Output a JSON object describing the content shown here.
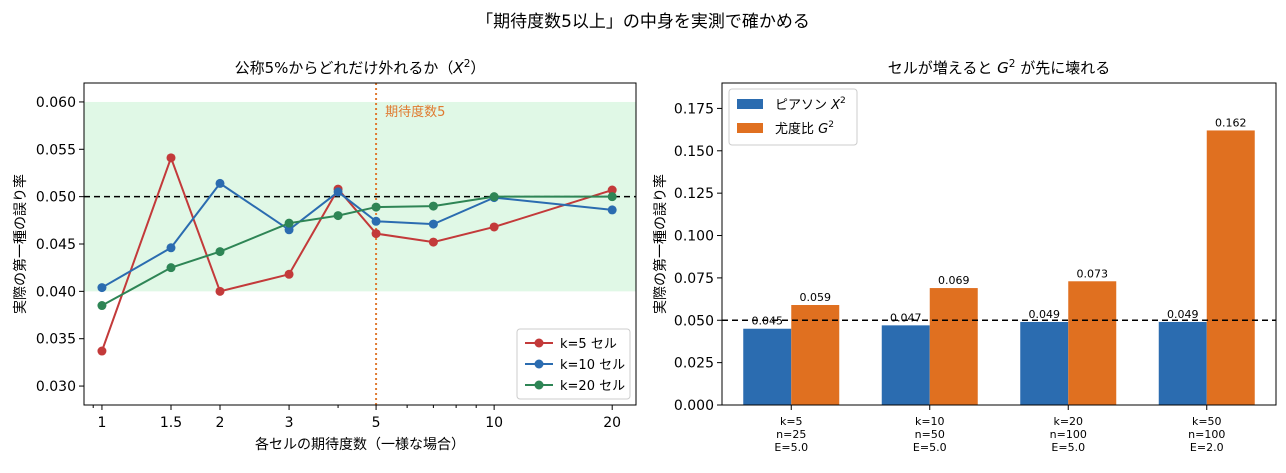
{
  "suptitle": "「期待度数5以上」の中身を実測で確かめる",
  "chart_data": [
    {
      "type": "line",
      "title": "公称5%からどれだけ外れるか（X²）",
      "xlabel": "各セルの期待度数（一様な場合）",
      "ylabel": "実際の第一種の誤り率",
      "xscale": "log",
      "xlim": [
        0.9,
        23
      ],
      "ylim": [
        0.028,
        0.062
      ],
      "x_ticks": [
        1,
        1.5,
        2,
        3,
        5,
        10,
        20
      ],
      "x_tick_labels": [
        "1",
        "1.5",
        "2",
        "3",
        "5",
        "10",
        "20"
      ],
      "y_ticks": [
        0.03,
        0.035,
        0.04,
        0.045,
        0.05,
        0.055,
        0.06
      ],
      "y_tick_labels": [
        "0.030",
        "0.035",
        "0.040",
        "0.045",
        "0.050",
        "0.055",
        "0.060"
      ],
      "band": [
        0.04,
        0.06
      ],
      "band_color": "#e0f8e6",
      "reference_y": 0.05,
      "vline_x": 5,
      "vline_label": "期待度数5",
      "vline_color": "#e07a30",
      "legend_position": "lower-right",
      "series": [
        {
          "name": "k=5 セル",
          "color": "#c33a3a",
          "x": [
            1,
            1.5,
            2,
            3,
            4,
            5,
            7,
            10,
            20
          ],
          "y": [
            0.0337,
            0.0541,
            0.04,
            0.0418,
            0.0508,
            0.0461,
            0.0452,
            0.0468,
            0.0507
          ]
        },
        {
          "name": "k=10 セル",
          "color": "#2b6cb0",
          "x": [
            1,
            1.5,
            2,
            3,
            4,
            5,
            7,
            10,
            20
          ],
          "y": [
            0.0404,
            0.0446,
            0.0514,
            0.0465,
            0.0505,
            0.0474,
            0.0471,
            0.0499,
            0.0486
          ]
        },
        {
          "name": "k=20 セル",
          "color": "#2e8555",
          "x": [
            1,
            1.5,
            2,
            3,
            4,
            5,
            7,
            10,
            20
          ],
          "y": [
            0.0385,
            0.0425,
            0.0442,
            0.0472,
            0.048,
            0.0489,
            0.049,
            0.05,
            0.05
          ]
        }
      ]
    },
    {
      "type": "bar",
      "title": "セルが増えると G² が先に壊れる",
      "ylabel": "実際の第一種の誤り率",
      "ylim": [
        0,
        0.19
      ],
      "y_ticks": [
        0,
        0.025,
        0.05,
        0.075,
        0.1,
        0.125,
        0.15,
        0.175
      ],
      "y_tick_labels": [
        "0.000",
        "0.025",
        "0.050",
        "0.075",
        "0.100",
        "0.125",
        "0.150",
        "0.175"
      ],
      "reference_y": 0.05,
      "legend_position": "upper-left",
      "categories": [
        [
          "k=5",
          "n=25",
          "E=5.0"
        ],
        [
          "k=10",
          "n=50",
          "E=5.0"
        ],
        [
          "k=20",
          "n=100",
          "E=5.0"
        ],
        [
          "k=50",
          "n=100",
          "E=2.0"
        ]
      ],
      "series": [
        {
          "name": "ピアソン X²",
          "color": "#2b6cb0",
          "values": [
            0.045,
            0.047,
            0.049,
            0.049
          ],
          "labels": [
            "0.045",
            "0.047",
            "0.049",
            "0.049"
          ]
        },
        {
          "name": "尤度比 G²",
          "color": "#e07020",
          "values": [
            0.059,
            0.069,
            0.073,
            0.162
          ],
          "labels": [
            "0.059",
            "0.069",
            "0.073",
            "0.162"
          ]
        }
      ]
    }
  ]
}
